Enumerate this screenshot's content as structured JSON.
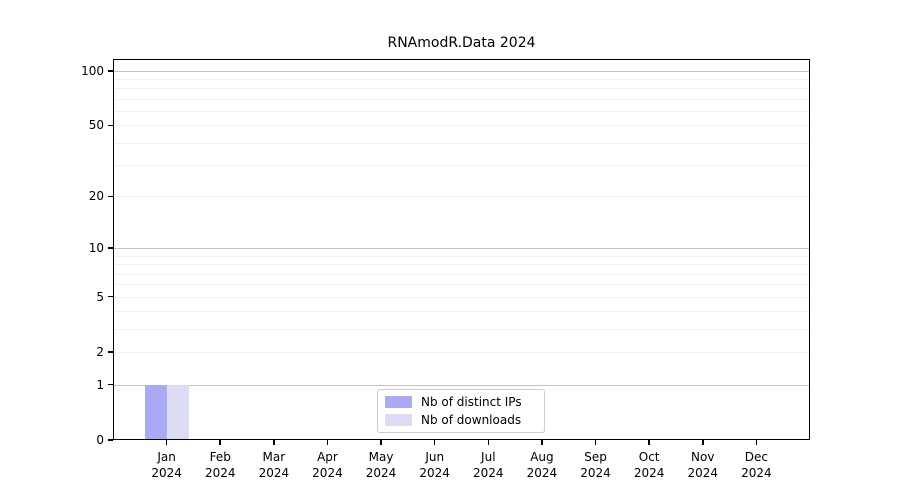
{
  "chart_data": {
    "type": "bar",
    "title": "RNAmodR.Data 2024",
    "categories": [
      "Jan",
      "Feb",
      "Mar",
      "Apr",
      "May",
      "Jun",
      "Jul",
      "Aug",
      "Sep",
      "Oct",
      "Nov",
      "Dec"
    ],
    "category_sublabel": "2024",
    "series": [
      {
        "name": "Nb of distinct IPs",
        "color": "#a9a9f4",
        "values": [
          1,
          0,
          0,
          0,
          0,
          0,
          0,
          0,
          0,
          0,
          0,
          0
        ]
      },
      {
        "name": "Nb of downloads",
        "color": "#dcdcf5",
        "values": [
          1,
          0,
          0,
          0,
          0,
          0,
          0,
          0,
          0,
          0,
          0,
          0
        ]
      }
    ],
    "xlabel": "",
    "ylabel": "",
    "yscale": "log1p",
    "ylim": [
      0,
      116
    ],
    "ytick_values": [
      0,
      1,
      2,
      5,
      10,
      20,
      50,
      100
    ],
    "ytick_labels": [
      "0",
      "1",
      "2",
      "5",
      "10",
      "20",
      "50",
      "100"
    ],
    "major_gridlines": [
      1,
      10,
      100
    ],
    "minor_gridlines": [
      2,
      3,
      4,
      5,
      6,
      7,
      8,
      9,
      20,
      30,
      40,
      50,
      60,
      70,
      80,
      90
    ],
    "grid": true,
    "legend_position": "bottom-center"
  }
}
